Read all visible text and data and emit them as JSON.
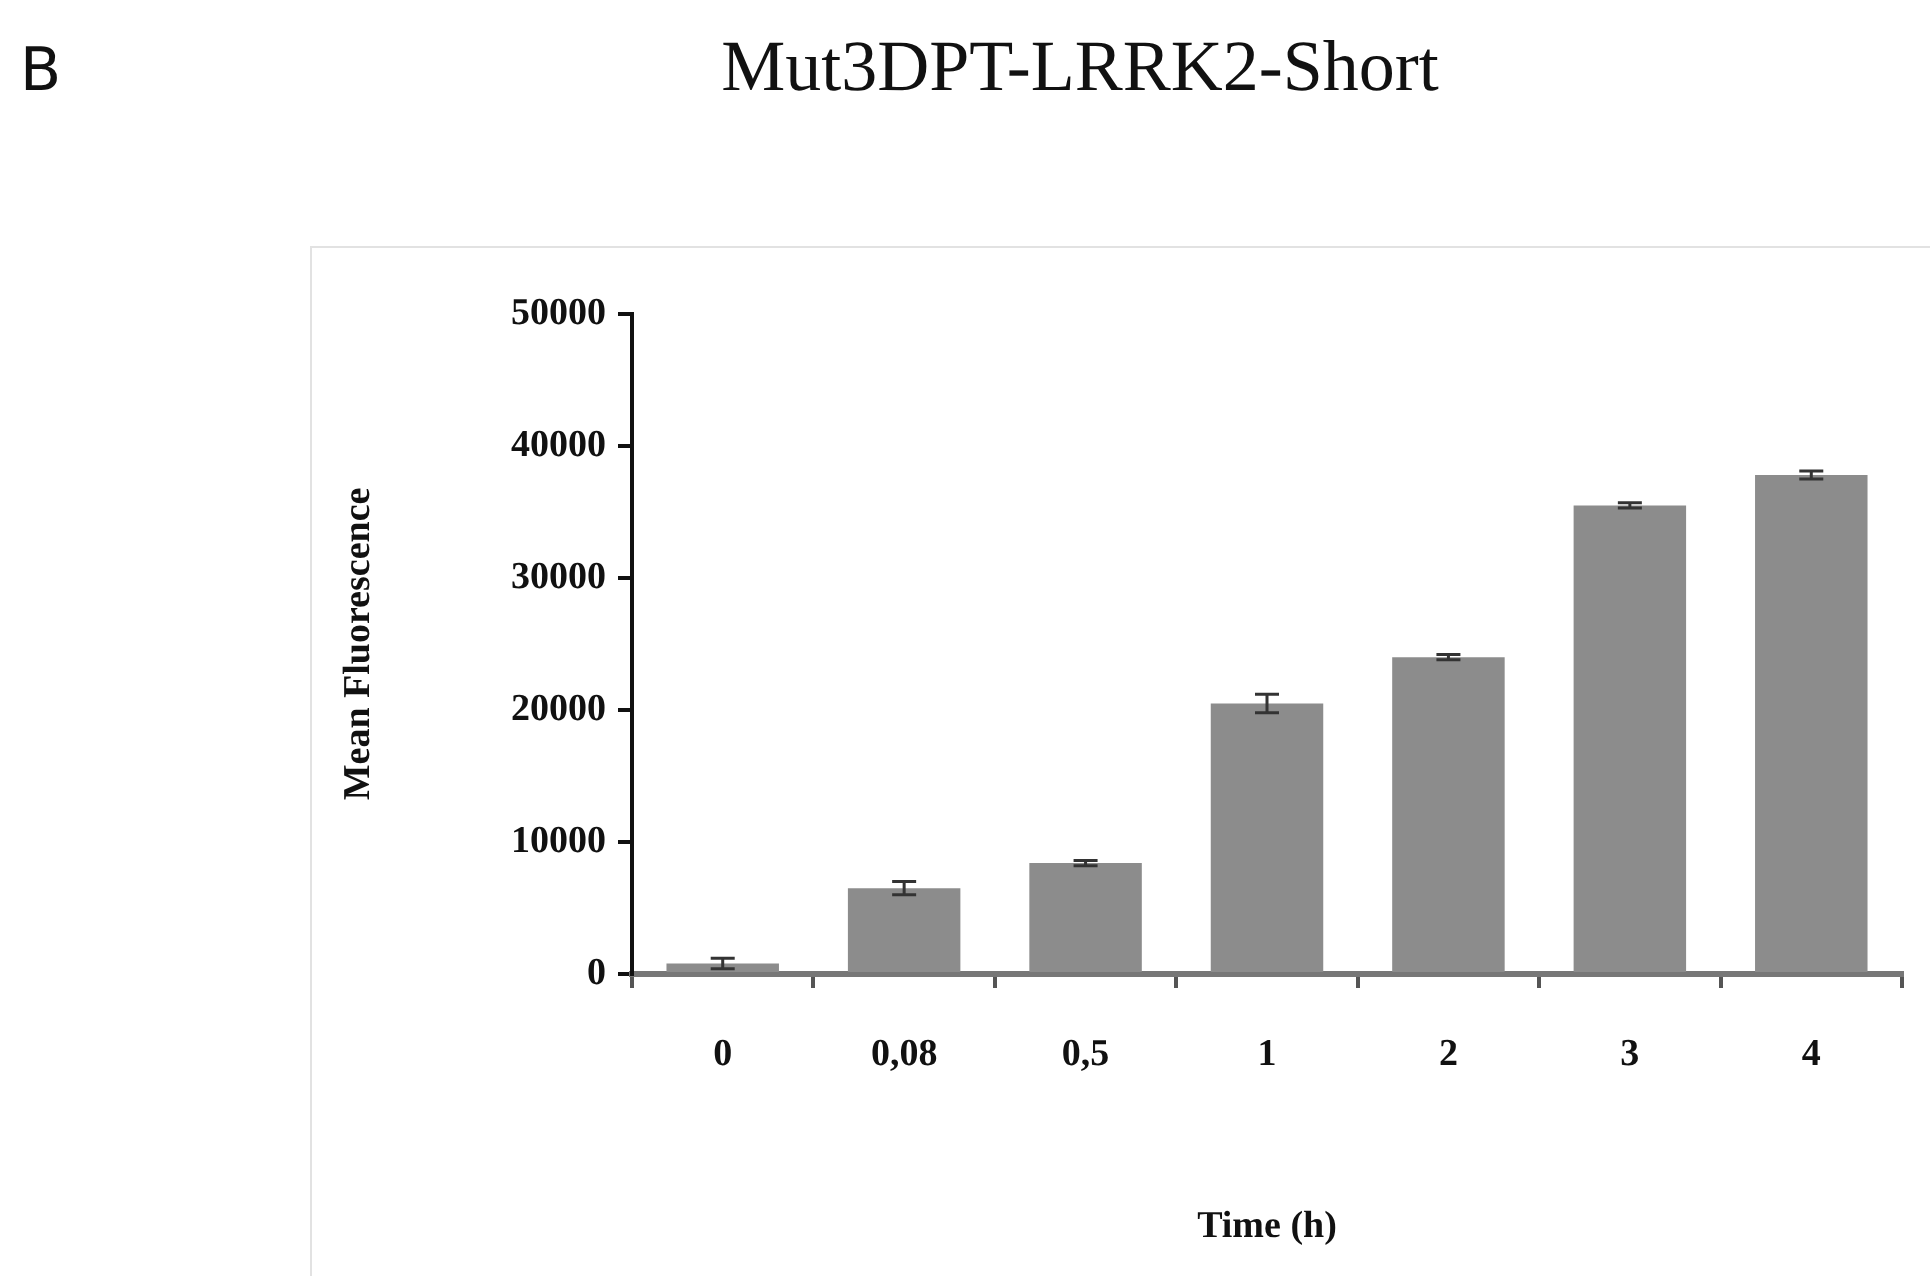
{
  "chart_data": {
    "type": "bar",
    "title": "Mut3DPT-LRRK2-Short",
    "annotations": [
      "B"
    ],
    "xlabel": "Time (h)",
    "ylabel": "Mean Fluorescence",
    "categories": [
      "0",
      "0,08",
      "0,5",
      "1",
      "2",
      "3",
      "4"
    ],
    "values": [
      800,
      6500,
      8400,
      20500,
      24000,
      35500,
      37800
    ],
    "errors": [
      400,
      500,
      200,
      700,
      200,
      200,
      300
    ],
    "color": "#8c8c8c",
    "ylim": [
      0,
      50000
    ],
    "yticks": [
      0,
      10000,
      20000,
      30000,
      40000,
      50000
    ],
    "grid": false,
    "legend": false
  }
}
